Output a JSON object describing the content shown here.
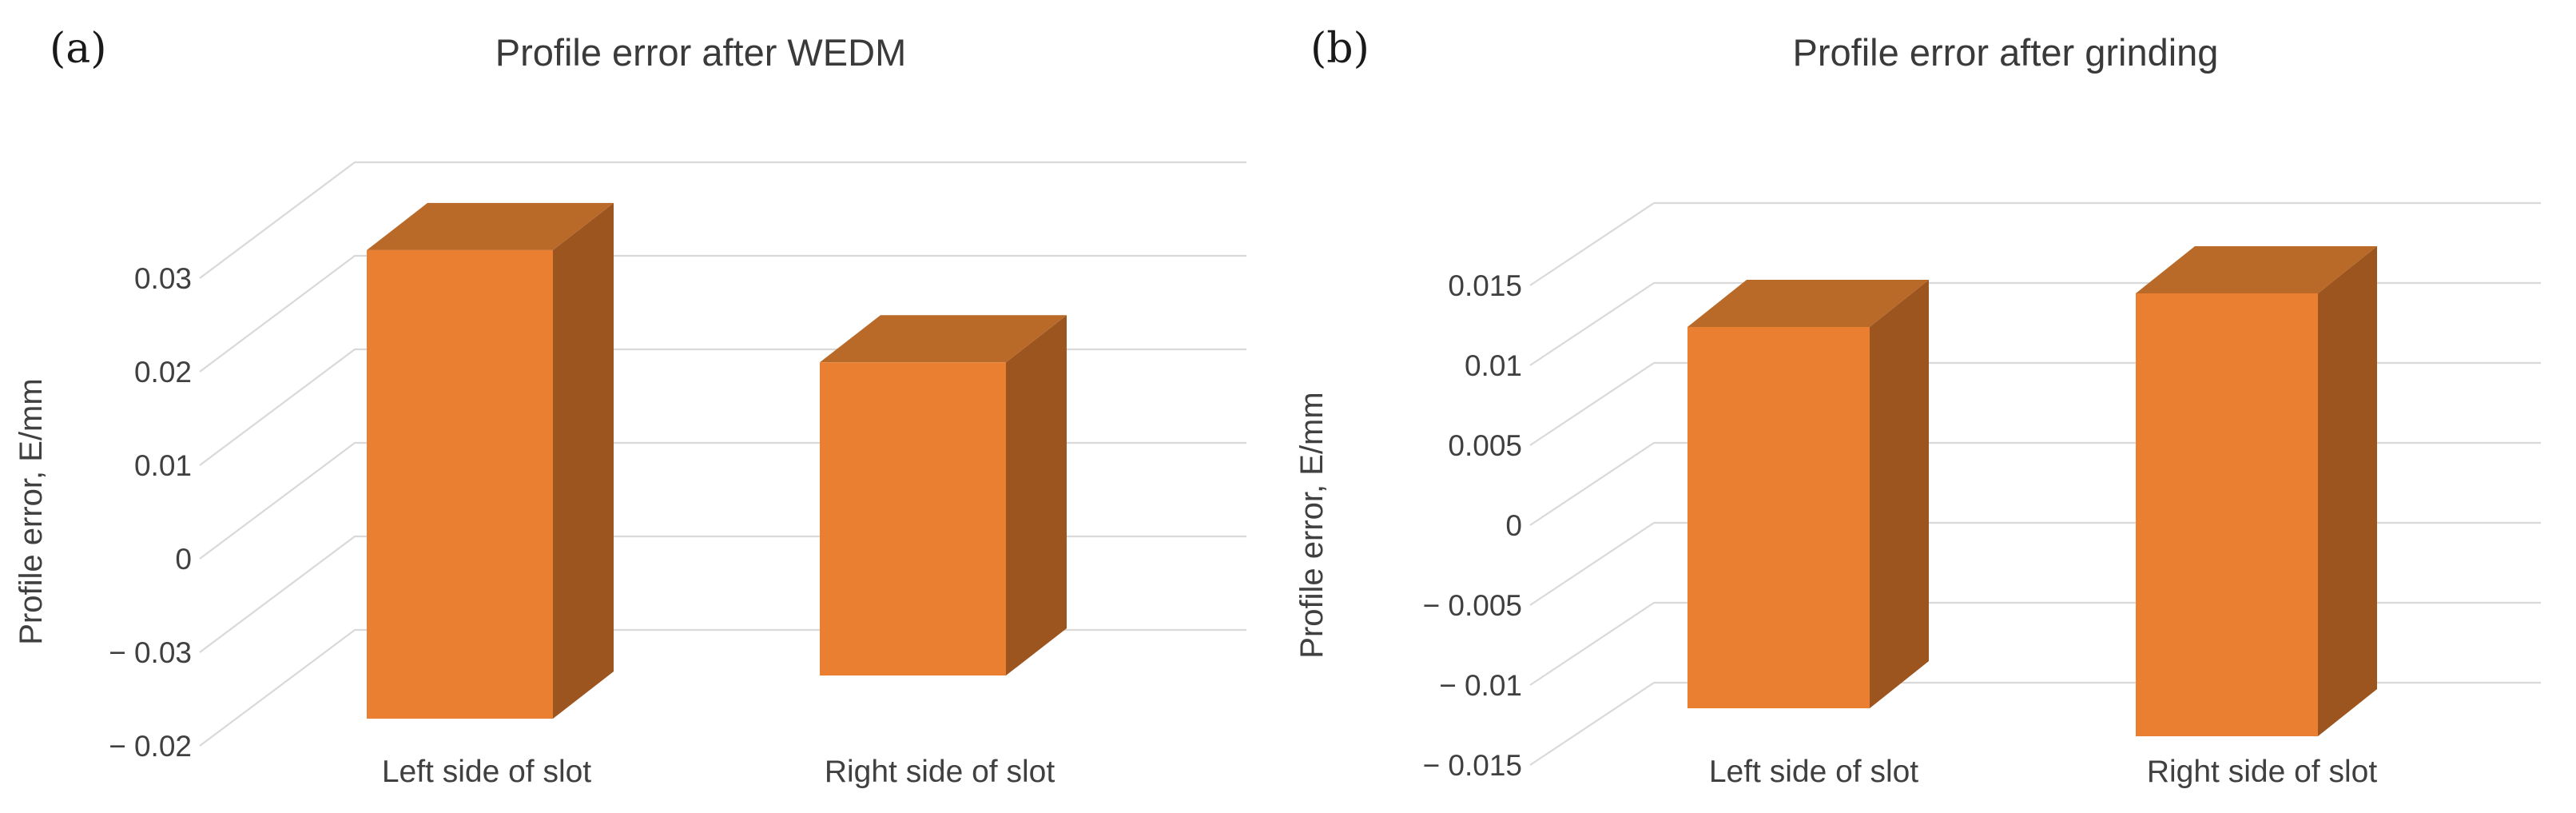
{
  "figure": {
    "background": "#ffffff",
    "panels": [
      {
        "label": "(a)"
      },
      {
        "label": "(b)"
      }
    ]
  },
  "colors": {
    "bar_front": "#EA7F32",
    "bar_top": "#B96A28",
    "bar_side": "#9D5520",
    "gridline": "#D9D9D9",
    "title_text": "#3A3A3A",
    "axis_text": "#404040",
    "panel_label_text": "#1A1A1A"
  },
  "chart_data": [
    {
      "type": "bar",
      "panel_label": "(a)",
      "title": "Profile error after WEDM",
      "ylabel": "Profile error, E/mm",
      "categories": [
        "Left side of slot",
        "Right side of slot"
      ],
      "values": [
        0.033,
        0.021
      ],
      "ytick_labels": [
        "0.03",
        "0.02",
        "0.01",
        "0",
        "− 0.03",
        "− 0.02"
      ],
      "ytick_unit_step": 0.01,
      "zero_tick_index": 3,
      "grid": true,
      "legend": "none",
      "style": "3d-column-oblique"
    },
    {
      "type": "bar",
      "panel_label": "(b)",
      "title": "Profile error after grinding",
      "ylabel": "Profile error, E/mm",
      "categories": [
        "Left side of slot",
        "Right side of slot"
      ],
      "values": [
        0.0124,
        0.0145
      ],
      "ytick_labels": [
        "0.015",
        "0.01",
        "0.005",
        "0",
        "− 0.005",
        "− 0.01",
        "− 0.015"
      ],
      "ytick_unit_step": 0.005,
      "zero_tick_index": 3,
      "grid": true,
      "legend": "none",
      "style": "3d-column-oblique"
    }
  ]
}
